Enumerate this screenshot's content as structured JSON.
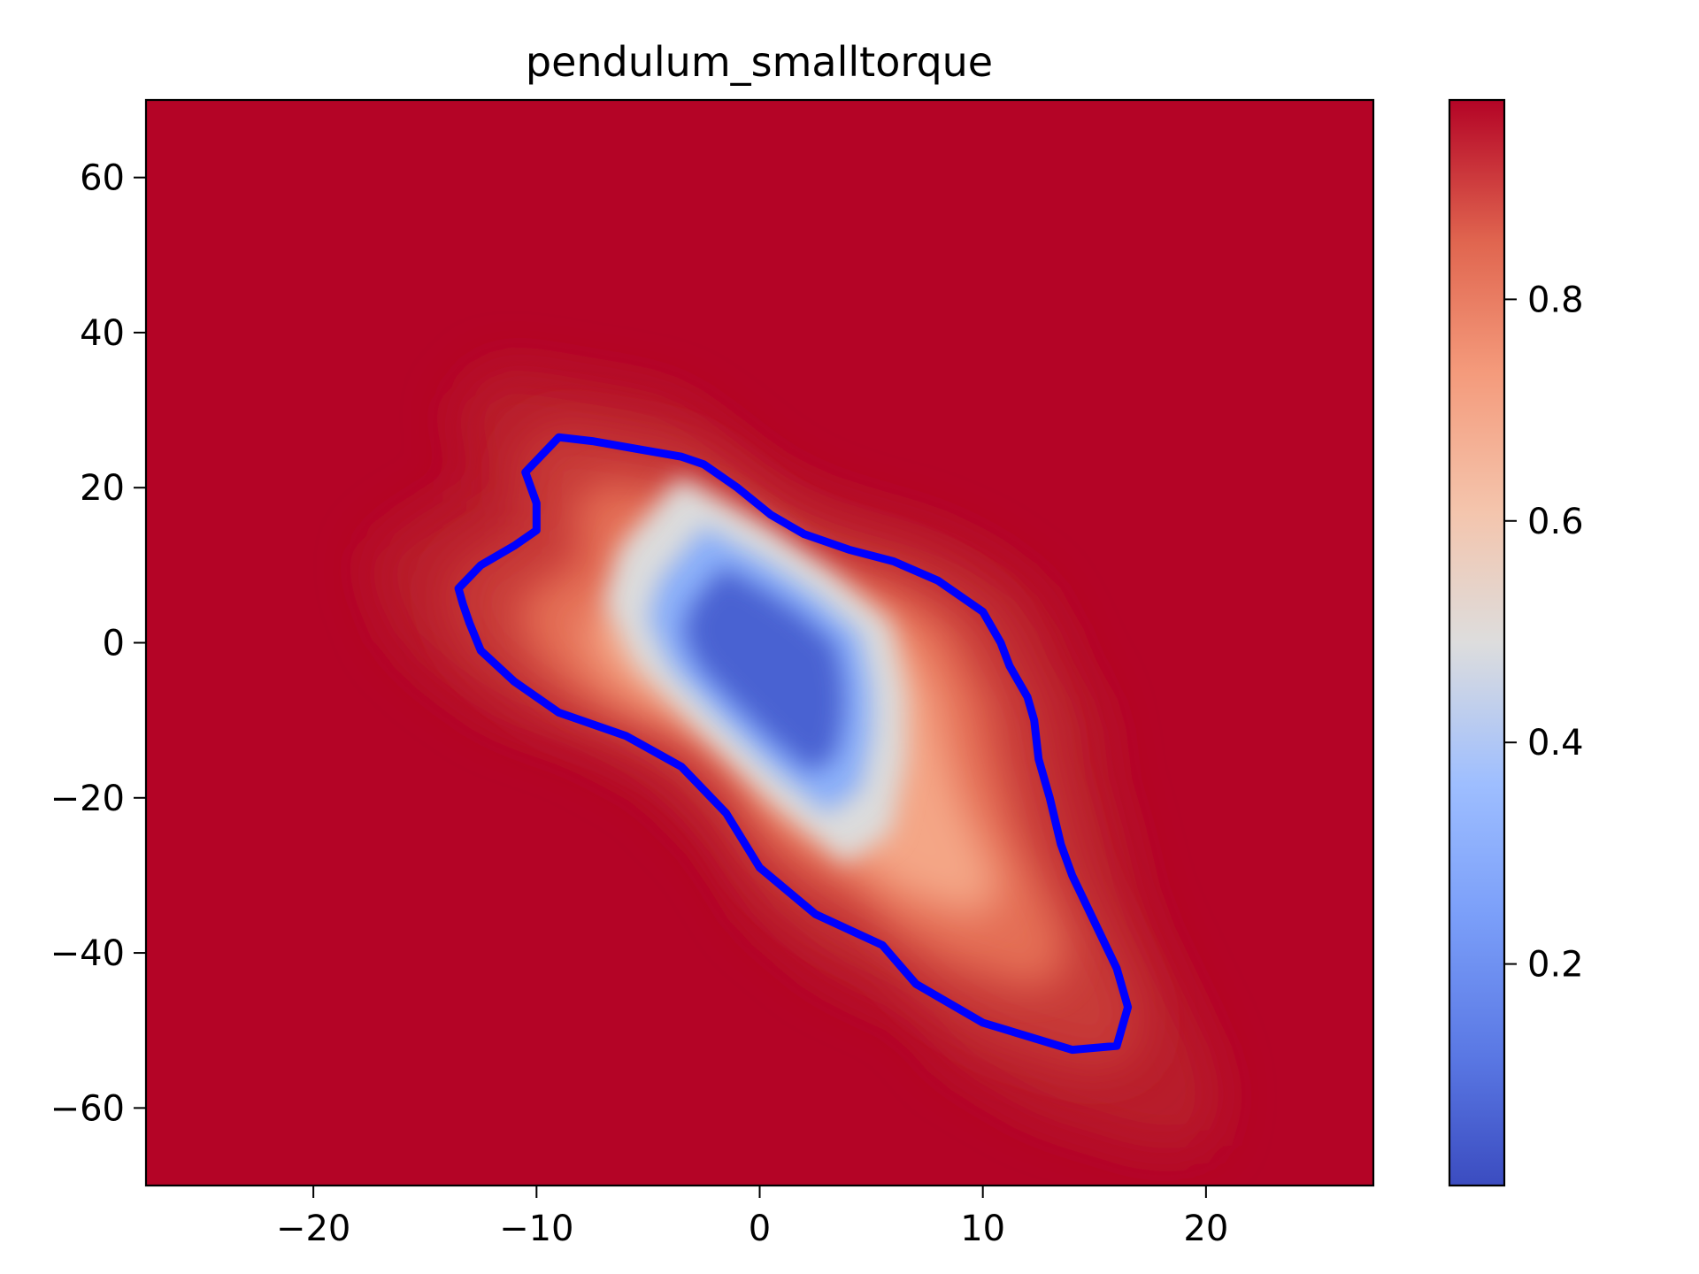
{
  "chart_data": {
    "type": "heatmap",
    "title": "pendulum_smalltorque",
    "xlabel": "",
    "ylabel": "",
    "xlim": [
      -27.5,
      27.5
    ],
    "ylim": [
      -70,
      70
    ],
    "x_ticks": [
      -20,
      -10,
      0,
      10,
      20
    ],
    "x_tick_labels": [
      "−20",
      "−10",
      "0",
      "10",
      "20"
    ],
    "y_ticks": [
      -60,
      -40,
      -20,
      0,
      20,
      40,
      60
    ],
    "y_tick_labels": [
      "−60",
      "−40",
      "−20",
      "0",
      "20",
      "40",
      "60"
    ],
    "grid": false,
    "colormap": "coolwarm",
    "colors": {
      "low": "#3b4cc0",
      "mid": "#dddddd",
      "high": "#b40426",
      "contour": "#0000ff"
    },
    "colorbar": {
      "range": [
        0.0,
        0.98
      ],
      "ticks": [
        0.2,
        0.4,
        0.6,
        0.8
      ],
      "tick_labels": [
        "0.2",
        "0.4",
        "0.6",
        "0.8"
      ]
    },
    "contour_level_boundary": [
      [
        -9.0,
        26.5
      ],
      [
        -7.5,
        26.0
      ],
      [
        -5.5,
        25.0
      ],
      [
        -3.5,
        24.0
      ],
      [
        -2.5,
        23.0
      ],
      [
        -1.0,
        20.0
      ],
      [
        0.5,
        16.5
      ],
      [
        2.0,
        14.0
      ],
      [
        4.0,
        12.0
      ],
      [
        6.0,
        10.5
      ],
      [
        8.0,
        8.0
      ],
      [
        10.0,
        4.0
      ],
      [
        10.8,
        0.0
      ],
      [
        11.2,
        -3.0
      ],
      [
        12.0,
        -7.0
      ],
      [
        12.3,
        -10.0
      ],
      [
        12.5,
        -15.0
      ],
      [
        13.0,
        -20.0
      ],
      [
        13.5,
        -26.0
      ],
      [
        14.0,
        -30.0
      ],
      [
        15.0,
        -36.0
      ],
      [
        16.0,
        -42.0
      ],
      [
        16.5,
        -47.0
      ],
      [
        16.0,
        -52.0
      ],
      [
        14.0,
        -52.5
      ],
      [
        10.0,
        -49.0
      ],
      [
        7.0,
        -44.0
      ],
      [
        5.5,
        -39.0
      ],
      [
        2.5,
        -35.0
      ],
      [
        0.0,
        -29.0
      ],
      [
        -1.5,
        -22.0
      ],
      [
        -3.5,
        -16.0
      ],
      [
        -6.0,
        -12.0
      ],
      [
        -9.0,
        -9.0
      ],
      [
        -11.0,
        -5.0
      ],
      [
        -12.5,
        -1.0
      ],
      [
        -13.0,
        2.5
      ],
      [
        -13.3,
        5.0
      ],
      [
        -13.5,
        7.0
      ],
      [
        -12.5,
        10.0
      ],
      [
        -11.0,
        12.5
      ],
      [
        -10.0,
        14.5
      ],
      [
        -10.0,
        18.0
      ],
      [
        -10.5,
        22.0
      ],
      [
        -9.0,
        26.5
      ]
    ],
    "low_value_core": [
      [
        -2.5,
        15.0
      ],
      [
        0.5,
        10.0
      ],
      [
        2.5,
        6.0
      ],
      [
        4.5,
        1.0
      ],
      [
        5.0,
        -6.0
      ],
      [
        5.0,
        -12.0
      ],
      [
        4.5,
        -19.0
      ],
      [
        3.0,
        -22.0
      ],
      [
        0.5,
        -16.0
      ],
      [
        -2.0,
        -9.0
      ],
      [
        -4.0,
        -3.0
      ],
      [
        -5.0,
        3.0
      ],
      [
        -4.5,
        8.0
      ]
    ]
  }
}
